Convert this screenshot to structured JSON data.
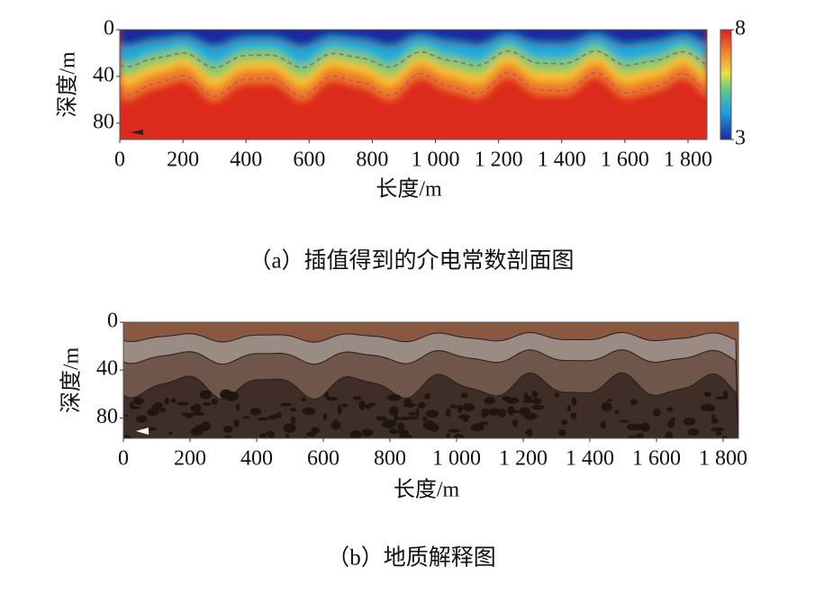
{
  "chart_data": [
    {
      "type": "heatmap",
      "caption": "（a）插值得到的介电常数剖面图",
      "xlabel": "长度/m",
      "ylabel": "深度/m",
      "xlim": [
        0,
        1860
      ],
      "xticks": [
        0,
        200,
        400,
        600,
        800,
        {
          "value": 1000,
          "label": "1 000"
        },
        {
          "value": 1200,
          "label": "1 200"
        },
        {
          "value": 1400,
          "label": "1 400"
        },
        {
          "value": 1600,
          "label": "1 600"
        },
        {
          "value": 1800,
          "label": "1 800"
        }
      ],
      "ylim": [
        0,
        94
      ],
      "yticks": [
        0,
        40,
        80
      ],
      "y_inverted": true,
      "colorbar": {
        "lim": [
          3,
          8
        ],
        "ticks": [
          3,
          8
        ]
      }
    },
    {
      "type": "geologic-section",
      "caption": "（b）地质解释图",
      "xlabel": "长度/m",
      "ylabel": "深度/m",
      "xlim": [
        0,
        1846
      ],
      "xticks": [
        0,
        200,
        400,
        600,
        800,
        {
          "value": 1000,
          "label": "1 000"
        },
        {
          "value": 1200,
          "label": "1 200"
        },
        {
          "value": 1400,
          "label": "1 400"
        },
        {
          "value": 1600,
          "label": "1 600"
        },
        {
          "value": 1800,
          "label": "1 800"
        }
      ],
      "ylim": [
        0,
        97
      ],
      "yticks": [
        0,
        40,
        80
      ],
      "y_inverted": true
    }
  ]
}
